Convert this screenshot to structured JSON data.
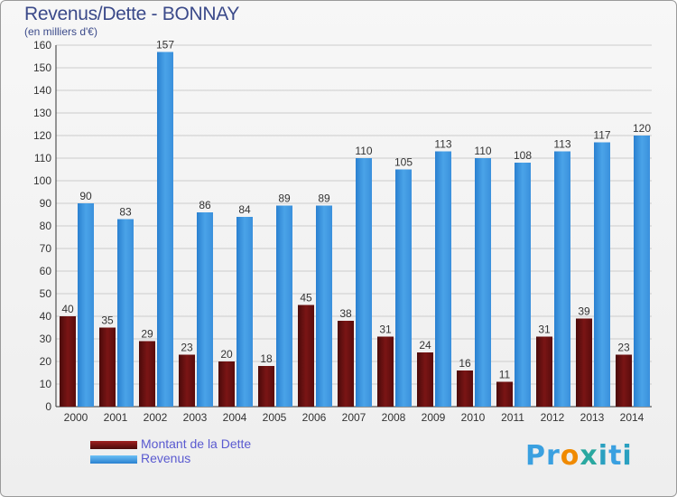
{
  "header": {
    "title": "Revenus/Dette - BONNAY",
    "subtitle": "(en milliers d'€)"
  },
  "legend": {
    "debt_label": "Montant de la Dette",
    "revenue_label": "Revenus"
  },
  "branding": {
    "logo_text": "Proxiti"
  },
  "colors": {
    "debt": "#7a1515",
    "revenue": "#4aa3e8",
    "grid": "#cccccc",
    "axis": "#333333"
  },
  "chart_data": {
    "type": "bar",
    "categories": [
      "2000",
      "2001",
      "2002",
      "2003",
      "2004",
      "2005",
      "2006",
      "2007",
      "2008",
      "2009",
      "2010",
      "2011",
      "2012",
      "2013",
      "2014"
    ],
    "series": [
      {
        "name": "Montant de la Dette",
        "values": [
          40,
          35,
          29,
          23,
          20,
          18,
          45,
          38,
          31,
          24,
          16,
          11,
          31,
          39,
          23
        ]
      },
      {
        "name": "Revenus",
        "values": [
          90,
          83,
          157,
          86,
          84,
          89,
          89,
          110,
          105,
          113,
          110,
          108,
          113,
          117,
          120
        ]
      }
    ],
    "title": "Revenus/Dette - BONNAY",
    "subtitle": "(en milliers d'€)",
    "xlabel": "",
    "ylabel": "",
    "ylim": [
      0,
      160
    ],
    "yticks": [
      0,
      10,
      20,
      30,
      40,
      50,
      60,
      70,
      80,
      90,
      100,
      110,
      120,
      130,
      140,
      150,
      160
    ],
    "grid": true,
    "legend_position": "bottom-left"
  }
}
